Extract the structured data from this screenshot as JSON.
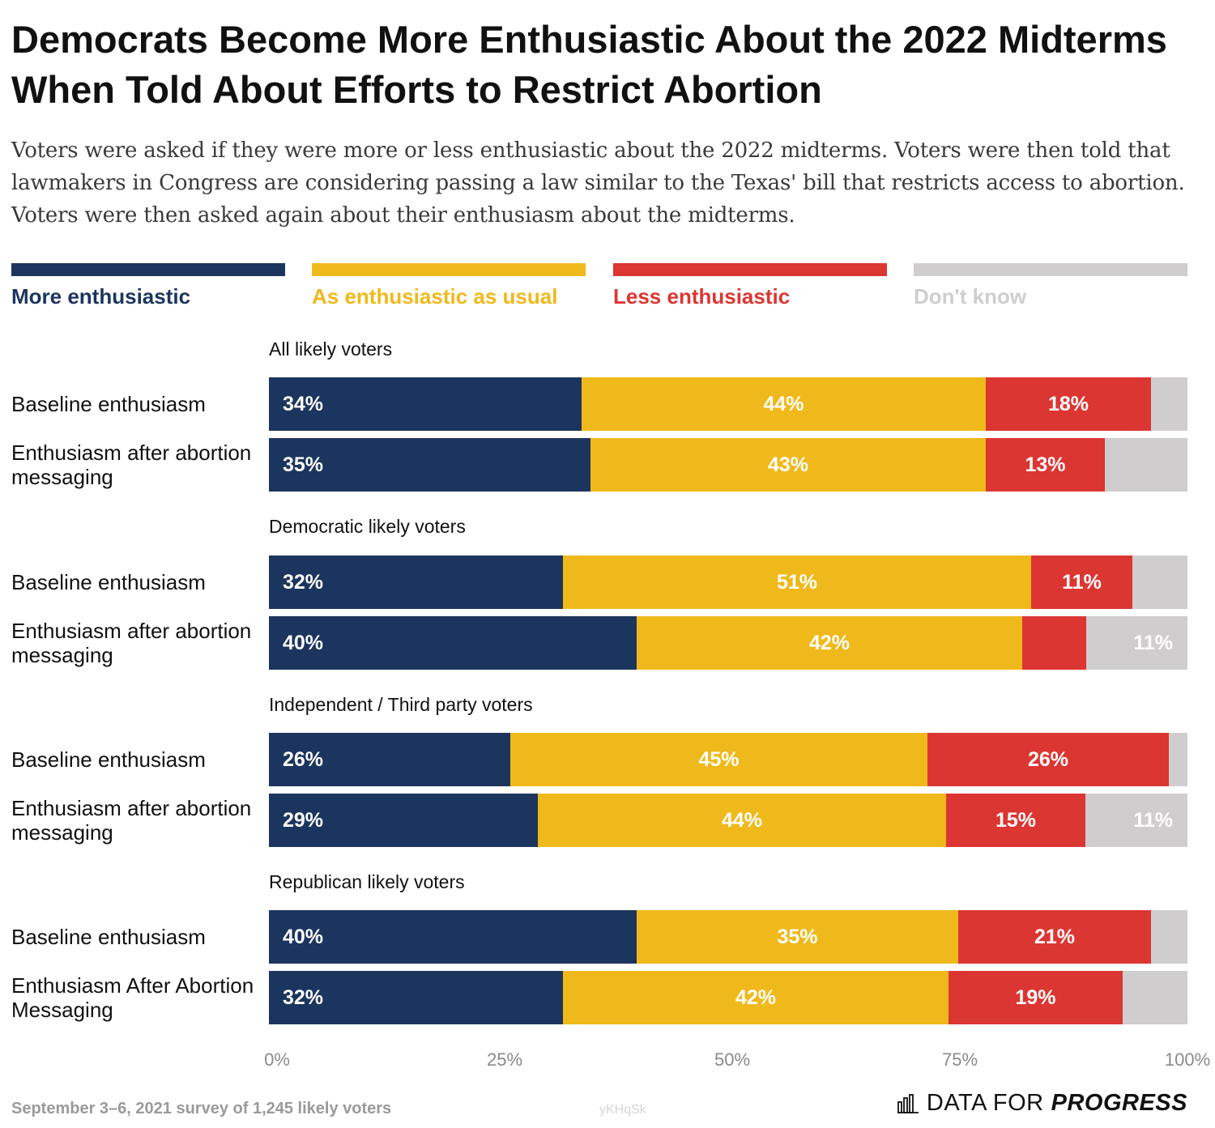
{
  "title": "Democrats Become More Enthusiastic About the 2022 Midterms When Told About Efforts to Restrict Abortion",
  "subtitle": "Voters were asked if they were more or less enthusiastic about the 2022 midterms. Voters were then told that lawmakers in Congress are considering passing a law similar to the Texas' bill that restricts access to abortion. Voters were then asked again about their enthusiasm about the midterms.",
  "footer": {
    "note": "September 3–6, 2021 survey of 1,245 likely voters",
    "chart_id": "yKHqSk",
    "brand_light": "DATA FOR",
    "brand_bold": "PROGRESS",
    "brand_icon": "bar-chart-icon"
  },
  "colors": {
    "more": "#1c355e",
    "usual": "#f0b91b",
    "less": "#dc3632",
    "dont_know": "#d0cdcf"
  },
  "chart_data": {
    "type": "bar",
    "orientation": "horizontal",
    "stacked": true,
    "xlim": [
      0,
      100
    ],
    "x_ticks": [
      "0%",
      "25%",
      "50%",
      "75%",
      "100%"
    ],
    "legend_position": "top",
    "series": [
      {
        "key": "more",
        "name": "More enthusiastic"
      },
      {
        "key": "usual",
        "name": "As enthusiastic as usual"
      },
      {
        "key": "less",
        "name": "Less enthusiastic"
      },
      {
        "key": "dont_know",
        "name": "Don't know"
      }
    ],
    "groups": [
      {
        "name": "All likely voters",
        "rows": [
          {
            "label": "Baseline enthusiasm",
            "values": [
              34,
              44,
              18,
              4
            ],
            "labels": [
              "34%",
              "44%",
              "18%",
              ""
            ]
          },
          {
            "label": "Enthusiasm after abortion messaging",
            "values": [
              35,
              43,
              13,
              9
            ],
            "labels": [
              "35%",
              "43%",
              "13%",
              ""
            ]
          }
        ]
      },
      {
        "name": "Democratic likely voters",
        "rows": [
          {
            "label": "Baseline enthusiasm",
            "values": [
              32,
              51,
              11,
              6
            ],
            "labels": [
              "32%",
              "51%",
              "11%",
              ""
            ]
          },
          {
            "label": "Enthusiasm after abortion messaging",
            "values": [
              40,
              42,
              7,
              11
            ],
            "labels": [
              "40%",
              "42%",
              "",
              "11%"
            ]
          }
        ]
      },
      {
        "name": "Independent / Third party voters",
        "rows": [
          {
            "label": "Baseline enthusiasm",
            "values": [
              26,
              45,
              26,
              2
            ],
            "labels": [
              "26%",
              "45%",
              "26%",
              ""
            ]
          },
          {
            "label": "Enthusiasm after abortion messaging",
            "values": [
              29,
              44,
              15,
              11
            ],
            "labels": [
              "29%",
              "44%",
              "15%",
              "11%"
            ]
          }
        ]
      },
      {
        "name": "Republican likely voters",
        "rows": [
          {
            "label": "Baseline enthusiasm",
            "values": [
              40,
              35,
              21,
              4
            ],
            "labels": [
              "40%",
              "35%",
              "21%",
              ""
            ]
          },
          {
            "label": "Enthusiasm After Abortion Messaging",
            "values": [
              32,
              42,
              19,
              7
            ],
            "labels": [
              "32%",
              "42%",
              "19%",
              ""
            ]
          }
        ]
      }
    ]
  }
}
